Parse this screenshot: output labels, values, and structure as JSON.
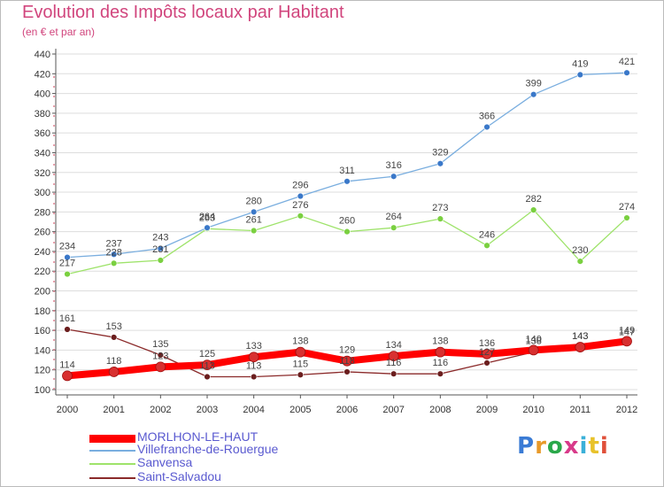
{
  "title": "Evolution des Impôts locaux par Habitant",
  "subtitle": "(en € et par an)",
  "logo": "Proxiti",
  "colors": {
    "title": "#d1457d",
    "axis": "#555555",
    "grid": "#dddddd",
    "legend_text": "#5a5ad0"
  },
  "chart_data": {
    "type": "line",
    "x": [
      "2000",
      "2001",
      "2002",
      "2003",
      "2004",
      "2005",
      "2006",
      "2007",
      "2008",
      "2009",
      "2010",
      "2011",
      "2012"
    ],
    "ylim": [
      100,
      440
    ],
    "yticks": [
      100,
      120,
      140,
      160,
      180,
      200,
      220,
      240,
      260,
      280,
      300,
      320,
      340,
      360,
      380,
      400,
      420,
      440
    ],
    "grid": "horizontal",
    "legend_position": "bottom-left",
    "series": [
      {
        "name": "MORLHON-LE-HAUT",
        "color": "#ff0000",
        "marker": "#d83030",
        "thick": true,
        "values": [
          114,
          118,
          123,
          125,
          133,
          138,
          129,
          134,
          138,
          136,
          140,
          143,
          149
        ]
      },
      {
        "name": "Villefranche-de-Rouergue",
        "color": "#7aaedf",
        "marker": "#3a78c9",
        "thick": false,
        "values": [
          234,
          237,
          243,
          264,
          280,
          296,
          311,
          316,
          329,
          366,
          399,
          419,
          421
        ]
      },
      {
        "name": "Sanvensa",
        "color": "#9ee36a",
        "marker": "#7ad040",
        "thick": false,
        "values": [
          217,
          228,
          231,
          263,
          261,
          276,
          260,
          264,
          273,
          246,
          282,
          230,
          274
        ]
      },
      {
        "name": "Saint-Salvadou",
        "color": "#8b2a2a",
        "marker": "#6b1e1e",
        "thick": false,
        "values": [
          161,
          153,
          135,
          113,
          113,
          115,
          118,
          116,
          116,
          127,
          138,
          143,
          147
        ]
      }
    ]
  }
}
